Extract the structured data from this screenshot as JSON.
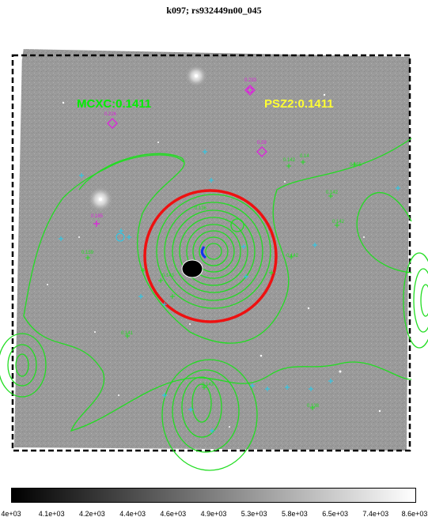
{
  "title": "k097; rs932449n00_045",
  "labels": {
    "mcxc": "MCXC:0.1411",
    "psz2": "PSZ2:0.1411"
  },
  "colors": {
    "mcxc": "#00ee00",
    "psz2": "#ffff33",
    "contour": "#22dd22",
    "circle": "#ee1111",
    "magenta": "#dd22dd",
    "cyan": "#22ccee"
  },
  "magenta_marks": [
    {
      "text": "0.233"
    },
    {
      "text": "0.226"
    },
    {
      "text": "0.29"
    },
    {
      "text": "0.185"
    }
  ],
  "green_marks": [
    "0.142",
    "0.14",
    "0.155",
    "0.142",
    "0.142",
    "0.159",
    "0.136",
    "0.143",
    "0.142",
    "0.141",
    "0.143",
    "0.138"
  ],
  "colorbar_ticks": [
    "4e+03",
    "4.1e+03",
    "4.2e+03",
    "4.4e+03",
    "4.6e+03",
    "4.9e+03",
    "5.3e+03",
    "5.8e+03",
    "6.5e+03",
    "7.4e+03",
    "8.6e+03"
  ]
}
